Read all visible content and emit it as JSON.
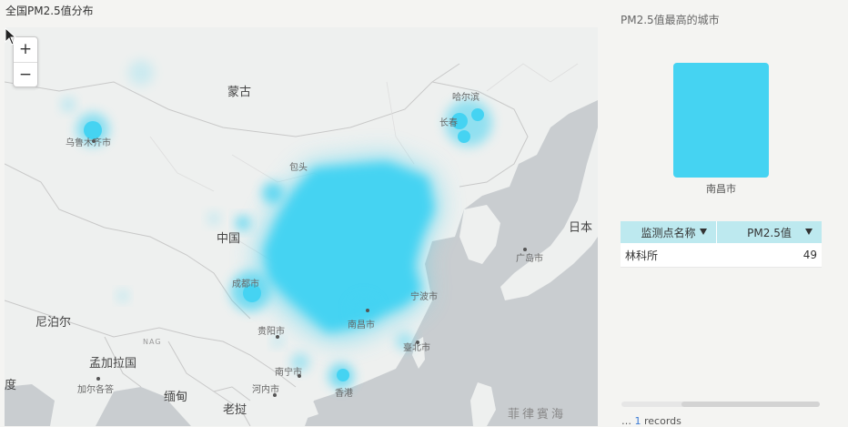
{
  "map_title": "全国PM2.5值分布",
  "zoom": {
    "in_label": "+",
    "out_label": "−"
  },
  "places": {
    "mongolia": "蒙古",
    "china": "中国",
    "nepal": "尼泊尔",
    "dhaka": "孟加拉国",
    "myanmar": "缅甸",
    "laos": "老挝",
    "japan": "日本",
    "india": "度",
    "urumqi": "乌鲁木齐市",
    "harbin": "哈尔滨",
    "changchun": "长春",
    "baotou": "包头",
    "guiyang": "贵阳市",
    "nanchang": "南昌市",
    "taipei": "臺北市",
    "nanning": "南宁市",
    "hanoi": "河内市",
    "hongkong": "香港",
    "hiroshima": "广岛市",
    "kolkata": "加尔各答",
    "chengdu": "成都市",
    "ningbo": "宁波市",
    "nag": "NAG",
    "sea": "菲律賓海"
  },
  "panel": {
    "title": "PM2.5值最高的城市",
    "bar_label": "南昌市",
    "bar_color": "#45d3f2"
  },
  "table": {
    "headers": [
      "监测点名称",
      "PM2.5值"
    ],
    "rows": [
      {
        "name": "林科所",
        "value": "49"
      }
    ]
  },
  "footer": {
    "prefix": "…",
    "count": "1",
    "suffix": "records"
  },
  "colors": {
    "heat": "#45d3f2",
    "water": "#c9cdd0",
    "land": "#eef0ef"
  }
}
